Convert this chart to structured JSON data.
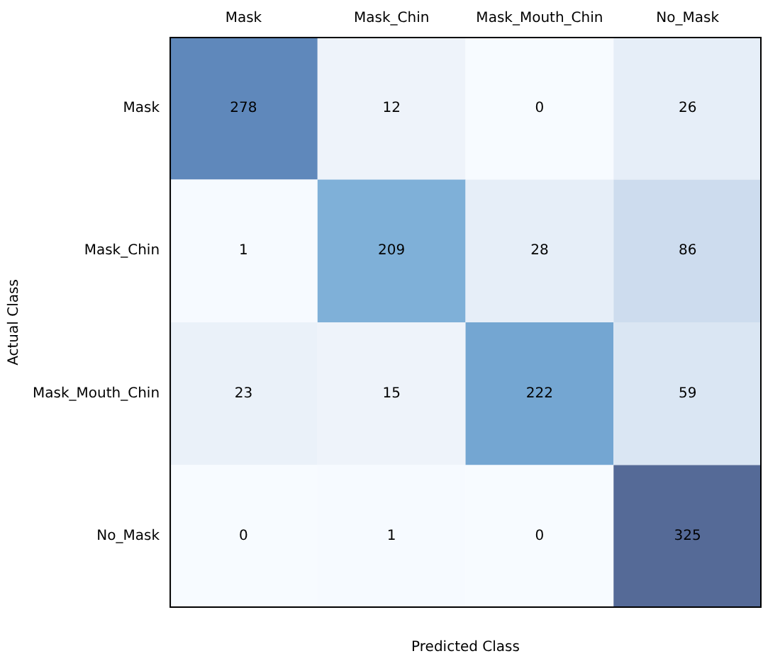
{
  "chart_data": {
    "type": "heatmap",
    "xlabel": "Predicted Class",
    "ylabel": "Actual Class",
    "categories": [
      "Mask",
      "Mask_Chin",
      "Mask_Mouth_Chin",
      "No_Mask"
    ],
    "y_categories": [
      "Mask",
      "Mask_Chin",
      "Mask_Mouth_Chin",
      "No_Mask"
    ],
    "cells": [
      [
        278,
        12,
        0,
        26
      ],
      [
        1,
        209,
        28,
        86
      ],
      [
        23,
        15,
        222,
        59
      ],
      [
        0,
        1,
        0,
        325
      ]
    ],
    "colors": [
      [
        "#5f88bb",
        "#eef3fa",
        "#f7fbff",
        "#e6eef8"
      ],
      [
        "#f6faff",
        "#7fb0d8",
        "#e6eef8",
        "#cddcee"
      ],
      [
        "#eaf1f9",
        "#eef3fa",
        "#74a6d2",
        "#dae6f3"
      ],
      [
        "#f7fbff",
        "#f6faff",
        "#f7fbff",
        "#556a97"
      ]
    ],
    "data_labels": true
  }
}
